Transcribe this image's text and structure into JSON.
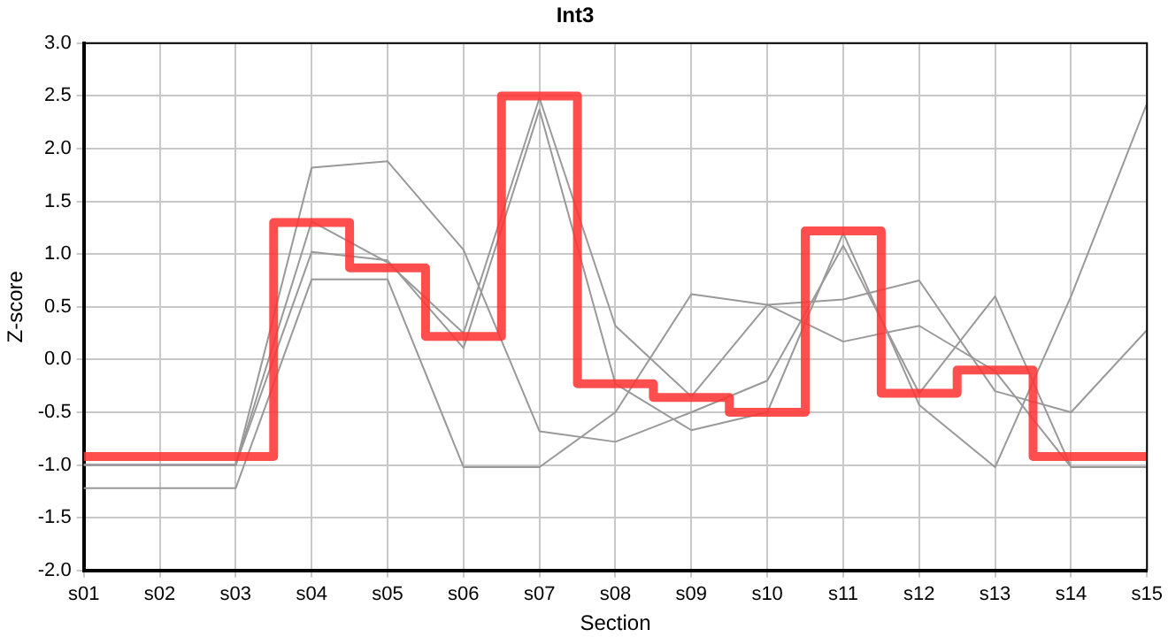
{
  "chart_data": {
    "type": "line",
    "title": "Int3",
    "xlabel": "Section",
    "ylabel": "Z-score",
    "categories": [
      "s01",
      "s02",
      "s03",
      "s04",
      "s05",
      "s06",
      "s07",
      "s08",
      "s09",
      "s10",
      "s11",
      "s12",
      "s13",
      "s14",
      "s15"
    ],
    "ylim": [
      -2,
      3
    ],
    "yticks": [
      {
        "value": -2,
        "label": "-2.0"
      },
      {
        "value": -1.5,
        "label": "-1.5"
      },
      {
        "value": -1,
        "label": "-1.0"
      },
      {
        "value": -0.5,
        "label": "-0.5"
      },
      {
        "value": 0,
        "label": "0.0"
      },
      {
        "value": 0.5,
        "label": "0.5"
      },
      {
        "value": 1,
        "label": "1.0"
      },
      {
        "value": 1.5,
        "label": "1.5"
      },
      {
        "value": 2,
        "label": "2.0"
      },
      {
        "value": 2.5,
        "label": "2.5"
      },
      {
        "value": 3,
        "label": "3.0"
      }
    ],
    "grid": true,
    "marker": "none",
    "line_style": "solid",
    "series": [
      {
        "type": "line",
        "color": "#999999",
        "values": [
          -1.0,
          -1.0,
          -1.0,
          1.82,
          1.88,
          1.04,
          -0.68,
          -0.78,
          -0.5,
          -0.2,
          1.08,
          -0.32,
          0.6,
          -1.02,
          -1.02
        ]
      },
      {
        "type": "line",
        "color": "#999999",
        "values": [
          -1.22,
          -1.22,
          -1.22,
          0.76,
          0.76,
          -1.02,
          -1.02,
          -0.5,
          0.62,
          0.52,
          0.57,
          0.75,
          -0.3,
          -0.5,
          0.28
        ]
      },
      {
        "type": "line",
        "color": "#999999",
        "values": [
          -1.0,
          -1.0,
          -1.0,
          1.31,
          0.92,
          0.25,
          2.48,
          0.32,
          -0.35,
          0.52,
          0.17,
          0.32,
          -0.11,
          -1.02,
          -1.02
        ]
      },
      {
        "type": "line",
        "color": "#999999",
        "values": [
          -1.0,
          -1.0,
          -1.0,
          1.02,
          0.94,
          0.11,
          2.37,
          -0.23,
          -0.67,
          -0.5,
          1.2,
          -0.43,
          -1.02,
          0.6,
          2.43
        ]
      },
      {
        "type": "step",
        "color": "#ff3333",
        "values": [
          -0.92,
          -0.92,
          -0.92,
          1.3,
          0.87,
          0.22,
          2.5,
          -0.23,
          -0.36,
          -0.5,
          1.22,
          -0.32,
          -0.1,
          -0.92,
          -0.92
        ]
      }
    ]
  }
}
